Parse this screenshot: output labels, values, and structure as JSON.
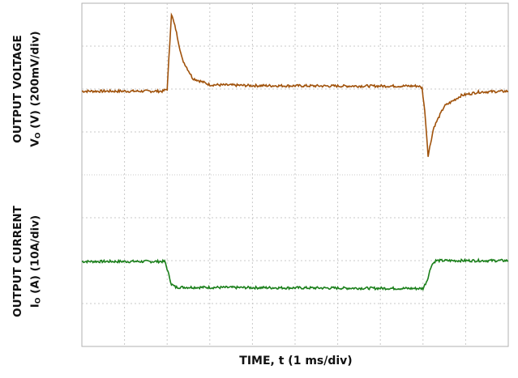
{
  "chart_data": [
    {
      "type": "line",
      "title": "",
      "xlabel": "TIME, t (1 ms/div)",
      "ylabel_line1": "OUTPUT VOLTAGE",
      "ylabel_line2_prefix": "V",
      "ylabel_line2_sub": "O",
      "ylabel_line2_suffix": " (V) (200mV/div)",
      "xlim": [
        0,
        10
      ],
      "ylim_div": [
        0,
        4
      ],
      "grid": true,
      "series": [
        {
          "color": "#a0520b",
          "points_div": [
            [
              0.0,
              1.95
            ],
            [
              1.9,
              1.95
            ],
            [
              2.0,
              2.0
            ],
            [
              2.1,
              3.75
            ],
            [
              2.2,
              3.4
            ],
            [
              2.35,
              2.7
            ],
            [
              2.6,
              2.25
            ],
            [
              3.0,
              2.1
            ],
            [
              4.0,
              2.08
            ],
            [
              6.0,
              2.07
            ],
            [
              7.9,
              2.07
            ],
            [
              7.98,
              2.02
            ],
            [
              8.05,
              1.4
            ],
            [
              8.12,
              0.45
            ],
            [
              8.25,
              1.1
            ],
            [
              8.5,
              1.6
            ],
            [
              8.9,
              1.85
            ],
            [
              9.3,
              1.93
            ],
            [
              10.0,
              1.95
            ]
          ]
        }
      ]
    },
    {
      "type": "line",
      "title": "",
      "xlabel": "TIME, t (1 ms/div)",
      "ylabel_line1": "OUTPUT CURRENT",
      "ylabel_line2_prefix": "I",
      "ylabel_line2_sub": "O",
      "ylabel_line2_suffix": " (A) (10A/div)",
      "xlim": [
        0,
        10
      ],
      "ylim_div": [
        0,
        4
      ],
      "grid": true,
      "series": [
        {
          "color": "#1a7f1a",
          "points_div": [
            [
              0.0,
              1.98
            ],
            [
              1.95,
              1.98
            ],
            [
              2.1,
              1.45
            ],
            [
              2.2,
              1.38
            ],
            [
              8.0,
              1.35
            ],
            [
              8.1,
              1.55
            ],
            [
              8.2,
              1.9
            ],
            [
              8.3,
              2.0
            ],
            [
              10.0,
              2.0
            ]
          ]
        }
      ]
    }
  ],
  "colors": {
    "grid": "#c8c8c8",
    "frame": "#b0b0b0",
    "voltage": "#a0520b",
    "current": "#1a7f1a"
  }
}
